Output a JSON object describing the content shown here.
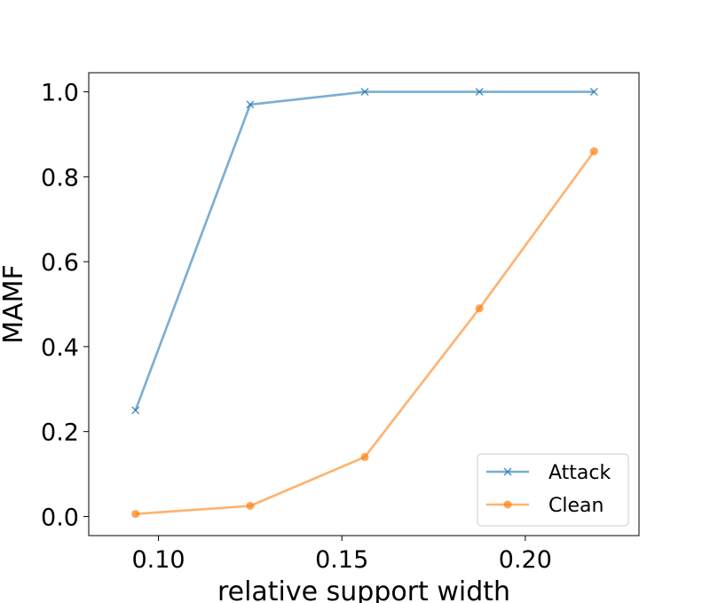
{
  "chart_data": {
    "type": "line",
    "title": "",
    "xlabel": "relative support width",
    "ylabel": "MAMF",
    "xlim": [
      0.081,
      0.231
    ],
    "ylim": [
      -0.045,
      1.045
    ],
    "x_ticks": [
      {
        "value": 0.1,
        "label": "0.10"
      },
      {
        "value": 0.15,
        "label": "0.15"
      },
      {
        "value": 0.2,
        "label": "0.20"
      }
    ],
    "y_ticks": [
      {
        "value": 0.0,
        "label": "0.0"
      },
      {
        "value": 0.2,
        "label": "0.2"
      },
      {
        "value": 0.4,
        "label": "0.4"
      },
      {
        "value": 0.6,
        "label": "0.6"
      },
      {
        "value": 0.8,
        "label": "0.8"
      },
      {
        "value": 1.0,
        "label": "1.0"
      }
    ],
    "grid": false,
    "legend_position": "bottom-right",
    "series": [
      {
        "name": "Attack",
        "color": "#1f77b4",
        "marker": "x",
        "x": [
          0.09375,
          0.125,
          0.15625,
          0.1875,
          0.21875
        ],
        "y": [
          0.25,
          0.97,
          1.0,
          1.0,
          1.0
        ]
      },
      {
        "name": "Clean",
        "color": "#ff7f0e",
        "marker": "o",
        "x": [
          0.09375,
          0.125,
          0.15625,
          0.1875,
          0.21875
        ],
        "y": [
          0.006,
          0.025,
          0.14,
          0.49,
          0.86
        ]
      }
    ]
  }
}
